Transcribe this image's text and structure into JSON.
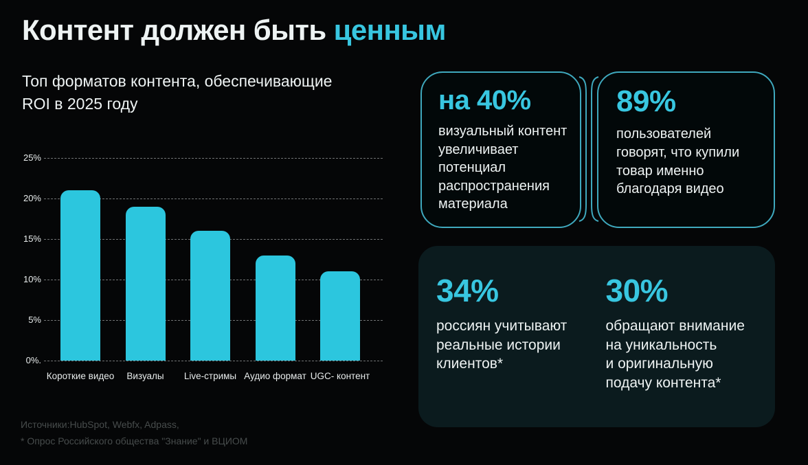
{
  "colors": {
    "page_bg": "#050607",
    "accent_cyan": "#38c6e0",
    "card_border_cyan": "#3fa9be",
    "bar_fill": "#2cc6de",
    "bottom_card_bg": "#0b1b1e",
    "text_white": "#eef3f3",
    "footer_muted": "#474c4c"
  },
  "header": {
    "title_prefix": "Контент должен быть ",
    "title_highlight": "ценным"
  },
  "chart": {
    "subtitle": "Топ форматов контента, обеспечивающие\nROI в 2025 году"
  },
  "chart_data": {
    "type": "bar",
    "title": "Топ форматов контента, обеспечивающие ROI в 2025 году",
    "categories": [
      "Короткие видео",
      "Визуалы",
      "Live-стримы",
      "Аудио формат",
      "UGC- контент"
    ],
    "values": [
      21,
      19,
      16,
      13,
      11
    ],
    "value_unit": "%",
    "xlabel": "",
    "ylabel": "",
    "ylim": [
      0,
      25
    ],
    "yticks": [
      0,
      5,
      10,
      15,
      20,
      25
    ],
    "ytick_labels": [
      "0%.",
      "5%",
      "10%",
      "15%",
      "20%",
      "25%"
    ],
    "grid": true,
    "grid_style": "dashed",
    "legend": false,
    "bar_color": "#2cc6de"
  },
  "stat_cards": [
    {
      "id": "visual-content-reach",
      "stat": "на 40%",
      "text": "визуальный контент\nувеличивает\nпотенциал\nраспространения\nматериала"
    },
    {
      "id": "video-purchase",
      "stat": "89%",
      "text": "пользователей\nговорят, что купили\nтовар именно\nблагодаря видео"
    },
    {
      "id": "client-stories",
      "stat": "34%",
      "text": "россиян учитывают\nреальные истории\nклиентов*"
    },
    {
      "id": "unique-content",
      "stat": "30%",
      "text": "обращают внимание\nна уникальность\nи оригинальную\nподачу контента*"
    }
  ],
  "footer": {
    "sources_line1": "Источники:HubSpot, Webfx, Adpass,",
    "sources_line2": "* Опрос Российского общества \"Знание\" и ВЦИОМ"
  }
}
